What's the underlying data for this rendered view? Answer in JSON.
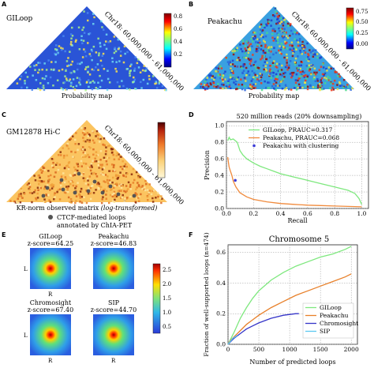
{
  "panels": {
    "A": {
      "letter": "A",
      "name": "GILoop",
      "coord": "Chr18: 60,000,000 - 61,000,000",
      "xlabel": "Probability map",
      "colorbar_ticks": [
        "0.8",
        "0.6",
        "0.4",
        "0.2"
      ]
    },
    "B": {
      "letter": "B",
      "name": "Peakachu",
      "coord": "Chr18: 60,000,000 - 61,000,000",
      "xlabel": "Probability map",
      "colorbar_ticks": [
        "0.75",
        "0.50",
        "0.25",
        "0.00"
      ]
    },
    "C": {
      "letter": "C",
      "name": "GM12878 Hi-C",
      "coord": "Chr18: 60,000,000 - 61,000,000",
      "xlabel": "KR-norm observed matrix",
      "xlabel_italic": "(log-transformed)",
      "legend_line1": "CTCF-mediated loops",
      "legend_line2": "annotated by ChIA-PET"
    },
    "E": {
      "letter": "E",
      "colorbar_ticks": [
        "2.5",
        "2.0",
        "1.5",
        "1.0",
        "0.5"
      ],
      "apas": [
        {
          "name": "GILoop",
          "score": "z-score=64.25"
        },
        {
          "name": "Peakachu",
          "score": "z-score=46.83"
        },
        {
          "name": "Chromosight",
          "score": "z-score=67.40"
        },
        {
          "name": "SIP",
          "score": "z-score=44.70"
        }
      ],
      "axis_l": "L",
      "axis_r": "R"
    }
  },
  "chart_data": [
    {
      "panel": "D",
      "type": "line",
      "title": "520 million reads (20% downsampling)",
      "xlabel": "Recall",
      "ylabel": "Precision",
      "xlim": [
        0,
        1.05
      ],
      "ylim": [
        0,
        1.05
      ],
      "xticks": [
        "0.0",
        "0.2",
        "0.4",
        "0.6",
        "0.8",
        "1.0"
      ],
      "yticks": [
        "0.0",
        "0.2",
        "0.4",
        "0.6",
        "0.8",
        "1.0"
      ],
      "grid": true,
      "legend": "top-right",
      "series": [
        {
          "name": "GILoop, PRAUC=0.317",
          "color": "#7ee87e",
          "x": [
            0.01,
            0.02,
            0.03,
            0.05,
            0.08,
            0.1,
            0.12,
            0.15,
            0.18,
            0.2,
            0.25,
            0.3,
            0.35,
            0.4,
            0.5,
            0.6,
            0.7,
            0.8,
            0.9,
            0.95,
            0.98,
            1.0
          ],
          "y": [
            0.82,
            0.86,
            0.83,
            0.84,
            0.8,
            0.7,
            0.65,
            0.6,
            0.57,
            0.55,
            0.51,
            0.48,
            0.45,
            0.42,
            0.38,
            0.34,
            0.3,
            0.26,
            0.22,
            0.18,
            0.12,
            0.05
          ]
        },
        {
          "name": "Peakachu, PRAUC=0.068",
          "color": "#f08a3c",
          "x": [
            0.01,
            0.015,
            0.02,
            0.03,
            0.04,
            0.05,
            0.07,
            0.1,
            0.15,
            0.2,
            0.3,
            0.4,
            0.5,
            0.6,
            0.7,
            0.8,
            0.9,
            1.0
          ],
          "y": [
            0.62,
            0.55,
            0.5,
            0.45,
            0.4,
            0.33,
            0.26,
            0.19,
            0.14,
            0.11,
            0.08,
            0.06,
            0.05,
            0.04,
            0.035,
            0.03,
            0.025,
            0.02
          ]
        }
      ],
      "points": [
        {
          "name": "Peakachu with clustering",
          "x": 0.065,
          "y": 0.34,
          "color": "#3b3bd6"
        }
      ]
    },
    {
      "panel": "F",
      "type": "line",
      "title": "Chromosome 5",
      "xlabel": "Number of predicted loops",
      "ylabel": "Fraction of well-supported loops (n=474)",
      "xlim": [
        0,
        2100
      ],
      "ylim": [
        0,
        0.65
      ],
      "xticks": [
        "0",
        "500",
        "1000",
        "1500",
        "2000"
      ],
      "yticks": [
        "0.0",
        "0.2",
        "0.4",
        "0.6"
      ],
      "grid": true,
      "legend": "bottom-right",
      "series": [
        {
          "name": "GILoop",
          "color": "#7ee87e",
          "x": [
            0,
            50,
            100,
            200,
            300,
            400,
            500,
            700,
            900,
            1100,
            1300,
            1500,
            1700,
            1900,
            2000
          ],
          "y": [
            0.0,
            0.04,
            0.08,
            0.17,
            0.24,
            0.3,
            0.35,
            0.42,
            0.47,
            0.51,
            0.54,
            0.57,
            0.59,
            0.62,
            0.64
          ]
        },
        {
          "name": "Peakachu",
          "color": "#e8802a",
          "x": [
            0,
            50,
            100,
            200,
            300,
            400,
            500,
            700,
            900,
            1100,
            1300,
            1500,
            1700,
            1900,
            2000
          ],
          "y": [
            0.0,
            0.03,
            0.05,
            0.09,
            0.13,
            0.16,
            0.19,
            0.24,
            0.28,
            0.32,
            0.35,
            0.38,
            0.41,
            0.44,
            0.46
          ]
        },
        {
          "name": "Chromosight",
          "color": "#3535c8",
          "x": [
            0,
            50,
            100,
            200,
            300,
            400,
            500,
            700,
            900,
            1000,
            1100,
            1150
          ],
          "y": [
            0.0,
            0.02,
            0.04,
            0.07,
            0.1,
            0.12,
            0.14,
            0.17,
            0.19,
            0.195,
            0.2,
            0.2
          ]
        },
        {
          "name": "SIP",
          "color": "#5bc8f0",
          "x": [
            0,
            20,
            40,
            60,
            80,
            100,
            120,
            140,
            150
          ],
          "y": [
            0.0,
            0.01,
            0.02,
            0.03,
            0.04,
            0.045,
            0.05,
            0.055,
            0.06
          ]
        }
      ]
    }
  ]
}
